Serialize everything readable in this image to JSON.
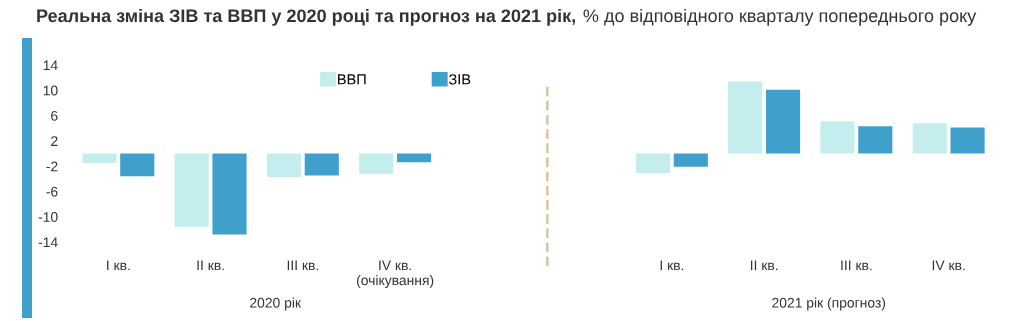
{
  "chart_data": {
    "type": "bar",
    "title": "Реальна зміна ЗІВ та ВВП у 2020 році та прогноз на 2021 рік,",
    "subtitle": "% до відповідного кварталу попереднього року",
    "categories": [
      "I кв.",
      "II кв.",
      "III кв.",
      "IV кв.\n(очікування)",
      null,
      null,
      "I кв.",
      "II кв.",
      "III кв.",
      "IV кв."
    ],
    "series": [
      {
        "name": "ВВП",
        "color": "#c4eeee",
        "values": [
          -1.5,
          -11.6,
          -3.7,
          -3.2,
          null,
          null,
          -3.1,
          11.4,
          5.1,
          4.8
        ]
      },
      {
        "name": "ЗІВ",
        "color": "#3fa0cc",
        "values": [
          -3.6,
          -12.8,
          -3.5,
          -1.4,
          null,
          null,
          -2.1,
          10.1,
          4.3,
          4.1
        ]
      }
    ],
    "annotations": [
      "2020 рік",
      "2021 рік (прогноз)"
    ],
    "ylim": [
      -14,
      14
    ],
    "yticks": [
      14,
      10,
      6,
      2,
      -2,
      -6,
      -10,
      -14
    ],
    "grid": false,
    "legend": "top"
  }
}
